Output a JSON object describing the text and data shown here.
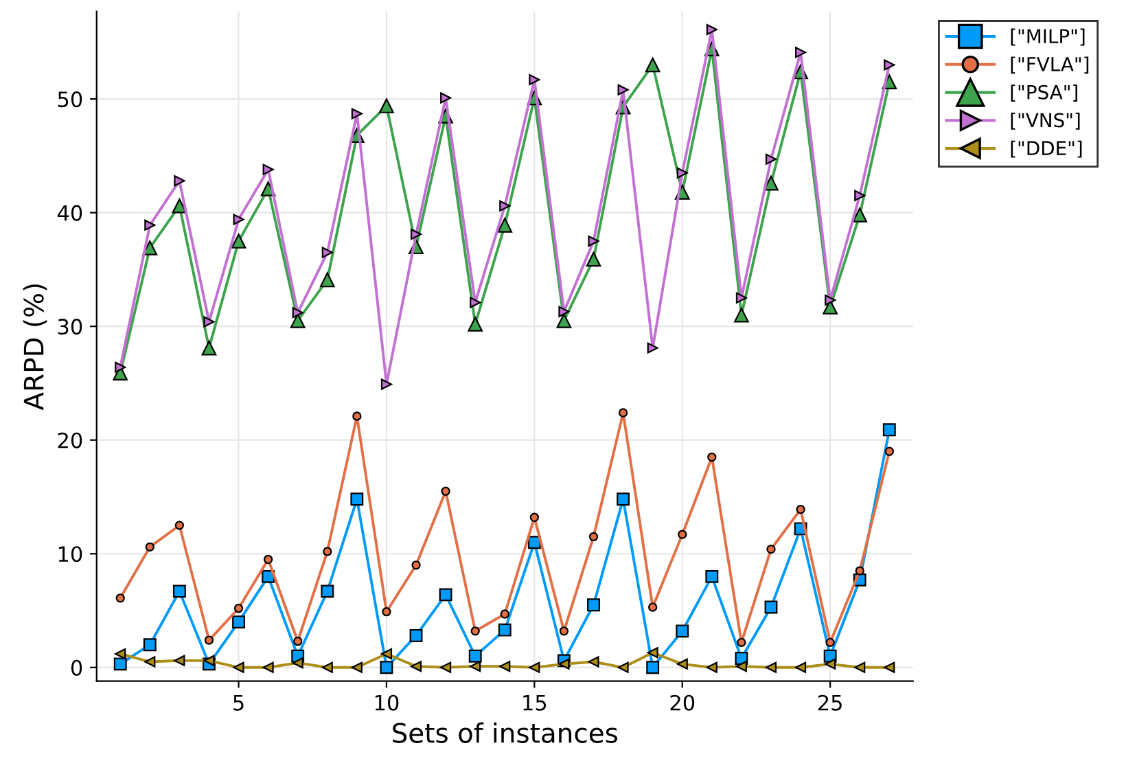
{
  "chart_data": {
    "type": "line",
    "xlabel": "Sets of instances",
    "ylabel": "ARPD (%)",
    "x": [
      1,
      2,
      3,
      4,
      5,
      6,
      7,
      8,
      9,
      10,
      11,
      12,
      13,
      14,
      15,
      16,
      17,
      18,
      19,
      20,
      21,
      22,
      23,
      24,
      25,
      26,
      27
    ],
    "xlim": [
      0.2,
      27.8
    ],
    "ylim": [
      -1.2,
      57.7
    ],
    "xticks": [
      5,
      10,
      15,
      20,
      25
    ],
    "yticks": [
      0,
      10,
      20,
      30,
      40,
      50
    ],
    "grid": true,
    "legend": "top right",
    "line_style": "solid",
    "series": [
      {
        "name": "[\"MILP\"]",
        "color": "#009af9",
        "marker": "square",
        "values": [
          0.3,
          2,
          6.7,
          0.3,
          4,
          8,
          1,
          6.7,
          14.8,
          0,
          2.8,
          6.4,
          1,
          3.3,
          11,
          0.6,
          5.5,
          14.8,
          0,
          3.2,
          8,
          0.8,
          5.3,
          12.2,
          1,
          7.7,
          20.9
        ]
      },
      {
        "name": "[\"FVLA\"]",
        "color": "#e26f46",
        "marker": "circle",
        "values": [
          6.1,
          10.6,
          12.5,
          2.4,
          5.2,
          9.5,
          2.3,
          10.2,
          22.1,
          4.9,
          9,
          15.5,
          3.2,
          4.7,
          13.2,
          3.2,
          11.5,
          22.4,
          5.3,
          11.7,
          18.5,
          2.2,
          10.4,
          13.9,
          2.2,
          8.5,
          19
        ]
      },
      {
        "name": "[\"PSA\"]",
        "color": "#3da44d",
        "marker": "triangle",
        "values": [
          25.9,
          36.9,
          40.6,
          28.1,
          37.5,
          42.1,
          30.5,
          34.1,
          46.8,
          49.4,
          37,
          48.5,
          30.2,
          38.9,
          50.1,
          30.5,
          35.9,
          49.3,
          53,
          41.8,
          54.4,
          31,
          42.6,
          52.4,
          31.7,
          39.8,
          51.5
        ]
      },
      {
        "name": "[\"VNS\"]",
        "color": "#c271d2",
        "marker": "triangle_right",
        "values": [
          26.4,
          38.9,
          42.8,
          30.4,
          39.4,
          43.8,
          31.2,
          36.5,
          48.7,
          24.9,
          38.1,
          50.1,
          32.1,
          40.6,
          51.7,
          31.3,
          37.5,
          50.8,
          28.1,
          43.5,
          56.1,
          32.5,
          44.7,
          54.1,
          32.3,
          41.5,
          53
        ]
      },
      {
        "name": "[\"DDE\"]",
        "color": "#ac8e18",
        "marker": "triangle_left",
        "values": [
          1.2,
          0.5,
          0.6,
          0.6,
          0,
          0,
          0.4,
          0,
          0,
          1.2,
          0.1,
          0,
          0.1,
          0.1,
          0,
          0.3,
          0.5,
          0,
          1.3,
          0.3,
          0,
          0.1,
          0,
          0,
          0.3,
          0,
          0
        ]
      }
    ]
  }
}
